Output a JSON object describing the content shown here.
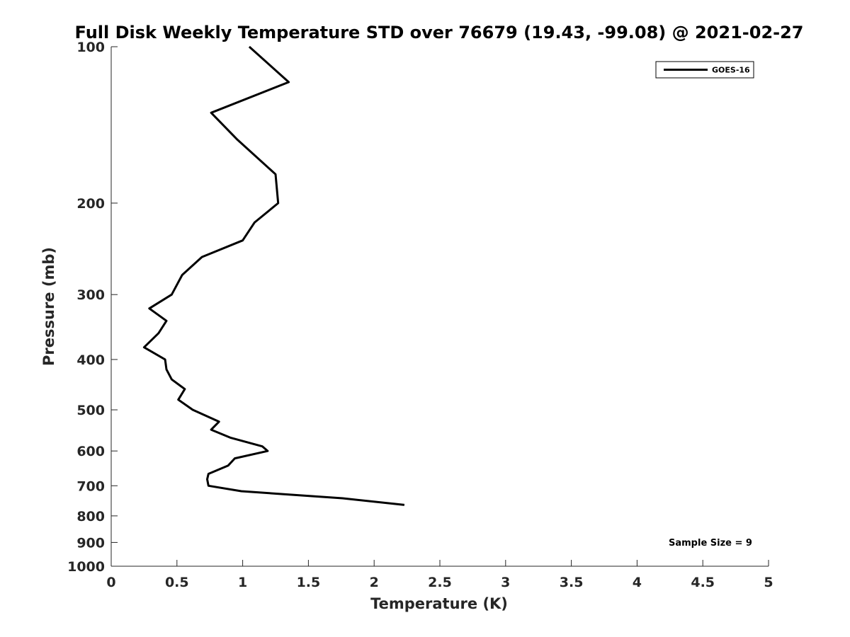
{
  "chart_data": {
    "type": "line",
    "title": "Full Disk Weekly Temperature STD over 76679 (19.43, -99.08) @ 2021-02-27",
    "xlabel": "Temperature (K)",
    "ylabel": "Pressure (mb)",
    "xlim": [
      0,
      5
    ],
    "ylim": [
      100,
      1000
    ],
    "y_scale": "log",
    "y_reversed": true,
    "grid": false,
    "legend_position": "top-right",
    "x_ticks": [
      0,
      0.5,
      1,
      1.5,
      2,
      2.5,
      3,
      3.5,
      4,
      4.5,
      5
    ],
    "x_tick_labels": [
      "0",
      "0.5",
      "1",
      "1.5",
      "2",
      "2.5",
      "3",
      "3.5",
      "4",
      "4.5",
      "5"
    ],
    "y_ticks": [
      100,
      200,
      300,
      400,
      500,
      600,
      700,
      800,
      900,
      1000
    ],
    "y_tick_labels": [
      "100",
      "200",
      "300",
      "400",
      "500",
      "600",
      "700",
      "800",
      "900",
      "1000"
    ],
    "series": [
      {
        "name": "GOES-16",
        "color": "#000000",
        "points": [
          {
            "x": 1.05,
            "y": 100
          },
          {
            "x": 1.35,
            "y": 117
          },
          {
            "x": 0.76,
            "y": 134
          },
          {
            "x": 0.96,
            "y": 151
          },
          {
            "x": 1.25,
            "y": 176
          },
          {
            "x": 1.27,
            "y": 200
          },
          {
            "x": 1.09,
            "y": 218
          },
          {
            "x": 1.0,
            "y": 236
          },
          {
            "x": 0.69,
            "y": 254
          },
          {
            "x": 0.54,
            "y": 275
          },
          {
            "x": 0.46,
            "y": 300
          },
          {
            "x": 0.29,
            "y": 319
          },
          {
            "x": 0.42,
            "y": 337
          },
          {
            "x": 0.36,
            "y": 356
          },
          {
            "x": 0.25,
            "y": 379
          },
          {
            "x": 0.41,
            "y": 400
          },
          {
            "x": 0.42,
            "y": 418
          },
          {
            "x": 0.46,
            "y": 437
          },
          {
            "x": 0.56,
            "y": 456
          },
          {
            "x": 0.51,
            "y": 478
          },
          {
            "x": 0.62,
            "y": 500
          },
          {
            "x": 0.82,
            "y": 527
          },
          {
            "x": 0.76,
            "y": 546
          },
          {
            "x": 0.91,
            "y": 566
          },
          {
            "x": 1.15,
            "y": 588
          },
          {
            "x": 1.19,
            "y": 600
          },
          {
            "x": 0.94,
            "y": 620
          },
          {
            "x": 0.89,
            "y": 640
          },
          {
            "x": 0.74,
            "y": 664
          },
          {
            "x": 0.73,
            "y": 680
          },
          {
            "x": 0.74,
            "y": 700
          },
          {
            "x": 0.99,
            "y": 717
          },
          {
            "x": 1.76,
            "y": 740
          },
          {
            "x": 2.23,
            "y": 762
          }
        ]
      }
    ],
    "annotation": "Sample Size = 9"
  }
}
